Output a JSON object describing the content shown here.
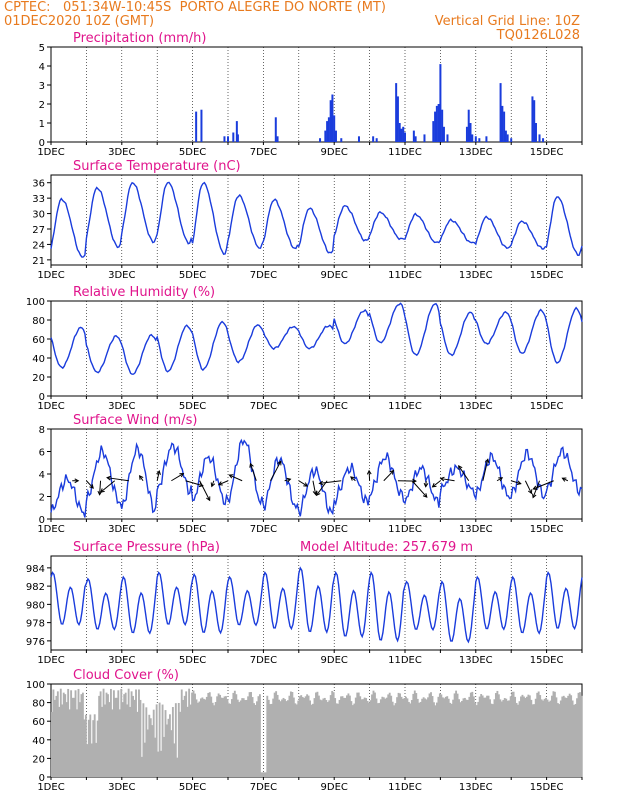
{
  "header": {
    "source": "CPTEC:",
    "coords": "051:34W-10:45S",
    "location": "PORTO ALEGRE DO NORTE (MT)",
    "init": "01DEC2020 10Z (GMT)",
    "grid_note": "Vertical Grid Line: 10Z",
    "code": "TQ0126L028"
  },
  "colors": {
    "header": "#e87a1e",
    "title": "#e0148c",
    "line": "#1a3cdc",
    "cloud": "#b0b0b0"
  },
  "x_ticks": [
    "1DEC",
    "3DEC",
    "5DEC",
    "7DEC",
    "9DEC",
    "11DEC",
    "13DEC",
    "15DEC"
  ],
  "chart_data": [
    {
      "type": "bar",
      "title": "Precipitation (mm/h)",
      "ylim": [
        0,
        5
      ],
      "yticks": [
        0,
        1,
        2,
        3,
        4,
        5
      ],
      "x_unit": "days since 01DEC 10Z",
      "bars": [
        [
          4.1,
          1.6
        ],
        [
          4.25,
          1.7
        ],
        [
          4.9,
          0.3
        ],
        [
          5.0,
          0.3
        ],
        [
          5.15,
          0.5
        ],
        [
          5.25,
          1.1
        ],
        [
          5.28,
          0.4
        ],
        [
          6.35,
          1.3
        ],
        [
          6.4,
          0.3
        ],
        [
          7.6,
          0.2
        ],
        [
          7.75,
          0.6
        ],
        [
          7.8,
          1.1
        ],
        [
          7.85,
          1.3
        ],
        [
          7.9,
          2.2
        ],
        [
          7.95,
          2.5
        ],
        [
          8.0,
          1.4
        ],
        [
          8.05,
          0.6
        ],
        [
          8.2,
          0.2
        ],
        [
          8.7,
          0.3
        ],
        [
          9.1,
          0.3
        ],
        [
          9.2,
          0.2
        ],
        [
          9.75,
          3.1
        ],
        [
          9.8,
          2.4
        ],
        [
          9.85,
          1.0
        ],
        [
          9.9,
          0.7
        ],
        [
          9.95,
          0.8
        ],
        [
          10.0,
          0.5
        ],
        [
          10.25,
          0.6
        ],
        [
          10.3,
          0.3
        ],
        [
          10.55,
          0.4
        ],
        [
          10.8,
          1.1
        ],
        [
          10.85,
          1.6
        ],
        [
          10.9,
          1.9
        ],
        [
          10.95,
          2.0
        ],
        [
          11.0,
          4.1
        ],
        [
          11.05,
          1.7
        ],
        [
          11.1,
          0.8
        ],
        [
          11.2,
          0.4
        ],
        [
          11.75,
          0.8
        ],
        [
          11.8,
          1.7
        ],
        [
          11.85,
          1.0
        ],
        [
          11.9,
          0.4
        ],
        [
          12.0,
          0.3
        ],
        [
          12.1,
          0.2
        ],
        [
          12.3,
          0.3
        ],
        [
          12.7,
          3.1
        ],
        [
          12.75,
          1.9
        ],
        [
          12.8,
          1.6
        ],
        [
          12.85,
          0.6
        ],
        [
          12.9,
          0.4
        ],
        [
          13.0,
          0.2
        ],
        [
          13.6,
          2.4
        ],
        [
          13.65,
          2.2
        ],
        [
          13.7,
          1.0
        ],
        [
          13.8,
          0.4
        ],
        [
          13.9,
          0.2
        ]
      ]
    },
    {
      "type": "line",
      "title": "Surface Temperature (nC)",
      "ylim": [
        20,
        37.5
      ],
      "yticks": [
        21,
        24,
        27,
        30,
        33,
        36
      ],
      "min_values": [
        21.5,
        23.5,
        24.5,
        24.3,
        22.2,
        23.3,
        23.2,
        22.3,
        24.7,
        25.0,
        24.3,
        24.3,
        23.3,
        23.2,
        22.0
      ],
      "max_values": [
        32.8,
        35.0,
        36.0,
        36.1,
        36.0,
        33.5,
        32.7,
        31.0,
        31.5,
        30.2,
        29.8,
        28.7,
        29.3,
        28.5,
        33.3
      ]
    },
    {
      "type": "line",
      "title": "Relative Humidity (%)",
      "ylim": [
        0,
        100
      ],
      "yticks": [
        0,
        20,
        40,
        60,
        80,
        100
      ],
      "min_values": [
        30,
        25,
        23,
        26,
        28,
        36,
        50,
        50,
        55,
        56,
        43,
        43,
        55,
        45,
        35
      ],
      "max_values": [
        72,
        63,
        64,
        74,
        78,
        75,
        73,
        74,
        90,
        97,
        97,
        88,
        88,
        90,
        92
      ]
    },
    {
      "type": "line",
      "title": "Surface Wind (m/s)",
      "ylim": [
        0,
        8
      ],
      "yticks": [
        0,
        2,
        4,
        6,
        8
      ],
      "min_values": [
        0.5,
        1.5,
        0.8,
        2.5,
        1.5,
        1.5,
        1.0,
        0.5,
        1.5,
        2.0,
        1.5,
        2.5,
        2.0,
        2.0,
        2.5
      ],
      "max_values": [
        3.5,
        6.0,
        6.2,
        6.5,
        5.5,
        7.0,
        5.3,
        4.3,
        4.5,
        5.5,
        4.5,
        4.5,
        5.5,
        5.8,
        6.0
      ]
    },
    {
      "type": "line",
      "title": "Surface Pressure (hPa)",
      "extra_label": "Model Altitude: 257.679 m",
      "ylim": [
        975,
        985.3
      ],
      "yticks": [
        976,
        978,
        980,
        982,
        984
      ],
      "min_values": [
        977.0,
        976.5,
        976.0,
        977.0,
        976.0,
        977.0,
        976.5,
        976.0,
        975.5,
        975.0,
        976.5,
        975.0,
        976.5,
        976.0,
        976.5
      ],
      "max_values": [
        983.5,
        982.8,
        983.0,
        983.5,
        983.3,
        983.0,
        983.5,
        984.0,
        983.5,
        983.5,
        982.5,
        982.5,
        983.0,
        983.0,
        983.5
      ]
    },
    {
      "type": "bar",
      "title": "Cloud Cover (%)",
      "ylim": [
        0,
        100
      ],
      "yticks": [
        0,
        20,
        40,
        60,
        80,
        100
      ]
    }
  ]
}
